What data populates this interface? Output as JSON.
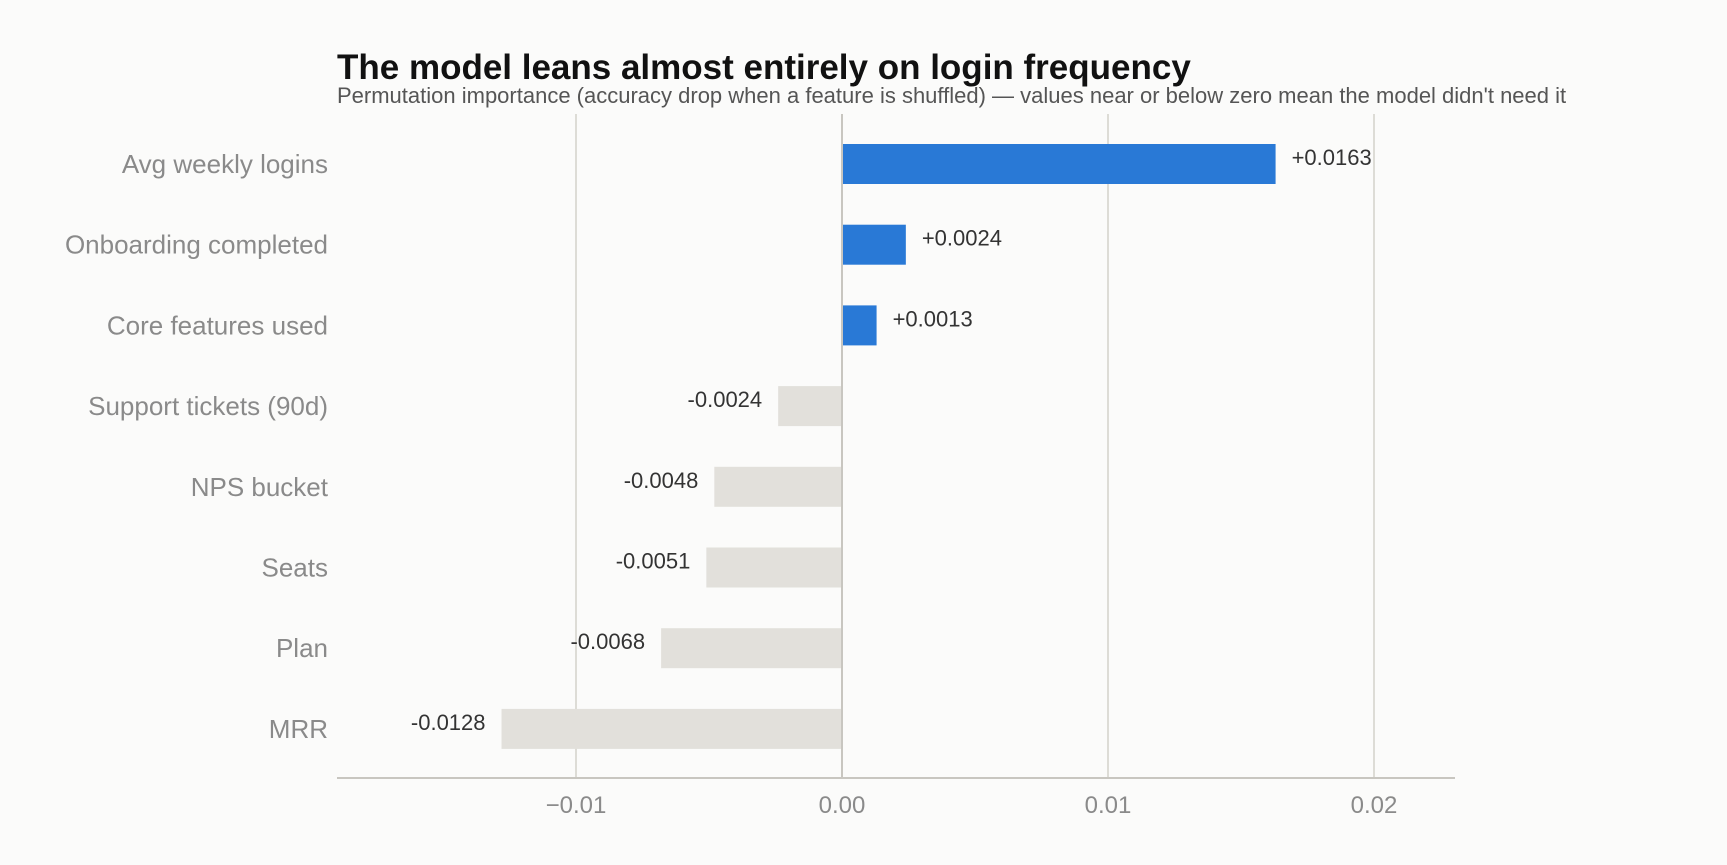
{
  "chart_data": {
    "type": "bar",
    "orientation": "horizontal",
    "title": "The model leans almost entirely on login frequency",
    "subtitle": "Permutation importance (accuracy drop when a feature is shuffled) — values near or below zero mean the model didn't need it",
    "categories": [
      "Avg weekly logins",
      "Onboarding completed",
      "Core features used",
      "Support tickets (90d)",
      "NPS bucket",
      "Seats",
      "Plan",
      "MRR"
    ],
    "values": [
      0.0163,
      0.0024,
      0.0013,
      -0.0024,
      -0.0048,
      -0.0051,
      -0.0068,
      -0.0128
    ],
    "value_labels": [
      "+0.0163",
      "+0.0024",
      "+0.0013",
      "-0.0024",
      "-0.0048",
      "-0.0051",
      "-0.0068",
      "-0.0128"
    ],
    "xticks": [
      -0.01,
      0.0,
      0.01,
      0.02
    ],
    "xtick_labels": [
      "−0.01",
      "0.00",
      "0.01",
      "0.02"
    ],
    "xlim": [
      -0.019,
      0.023
    ],
    "xlabel": "",
    "ylabel": "",
    "grid": "vertical",
    "colors": {
      "positive": "#2979d6",
      "negative": "#e2e0db",
      "grid": "#dddcd6",
      "axis": "#c8c6c0",
      "background": "#fbfbfa"
    }
  }
}
